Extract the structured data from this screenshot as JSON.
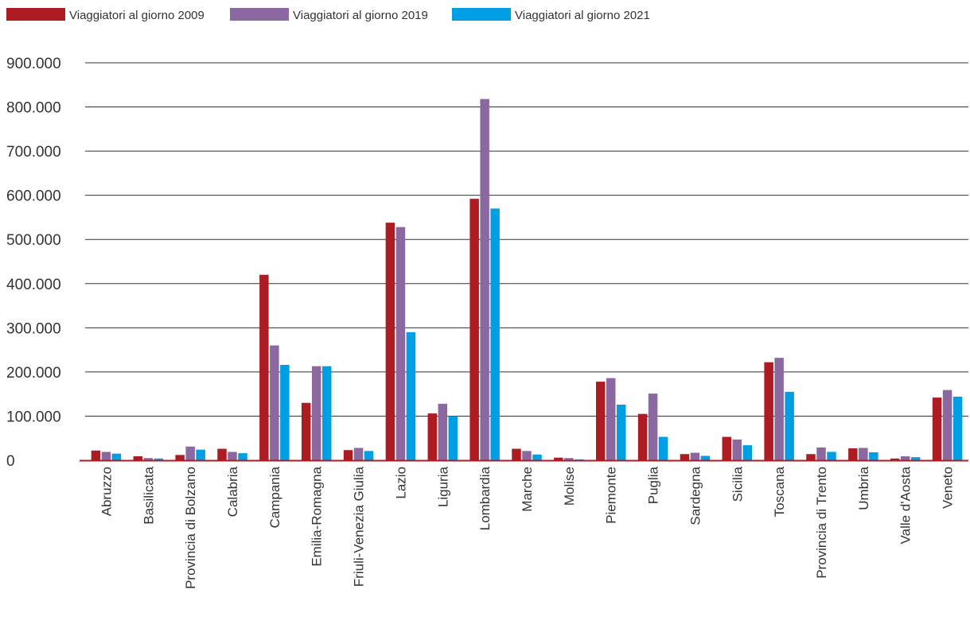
{
  "colors": {
    "series_2009": "#ad1c22",
    "series_2019": "#8c68a0",
    "series_2021": "#009fe3",
    "gridline": "#333333",
    "baseline": "#ad1c22"
  },
  "chart_data": {
    "type": "bar",
    "title": "",
    "xlabel": "",
    "ylabel": "",
    "ylim": [
      0,
      900000
    ],
    "grid": true,
    "legend_position": "top-left",
    "y_tick_values": [
      0,
      100000,
      200000,
      300000,
      400000,
      500000,
      600000,
      700000,
      800000,
      900000
    ],
    "y_tick_labels": [
      "0",
      "100.000",
      "200.000",
      "300.000",
      "400.000",
      "500.000",
      "600.000",
      "700.000",
      "800.000",
      "900.000"
    ],
    "categories": [
      "Abruzzo",
      "Basilicata",
      "Provincia di Bolzano",
      "Calabria",
      "Campania",
      "Emilia-Romagna",
      "Friuli-Venezia Giulia",
      "Lazio",
      "Liguria",
      "Lombardia",
      "Marche",
      "Molise",
      "Piemonte",
      "Puglia",
      "Sardegna",
      "Sicilia",
      "Toscana",
      "Provincia di Trento",
      "Umbria",
      "Valle d'Aosta",
      "Veneto"
    ],
    "series": [
      {
        "name": "Viaggiatori al giorno 2009",
        "values": [
          22000,
          9000,
          12000,
          26000,
          420000,
          130000,
          23000,
          538000,
          106000,
          592000,
          26000,
          6000,
          178000,
          105000,
          14000,
          53000,
          222000,
          14000,
          27000,
          4000,
          142000
        ]
      },
      {
        "name": "Viaggiatori al giorno 2019",
        "values": [
          19000,
          5000,
          31000,
          19000,
          260000,
          213000,
          28000,
          528000,
          128000,
          818000,
          21000,
          5000,
          186000,
          151000,
          17000,
          47000,
          232000,
          29000,
          28000,
          9000,
          159000
        ]
      },
      {
        "name": "Viaggiatori al giorno 2021",
        "values": [
          15000,
          4000,
          24000,
          16000,
          216000,
          213000,
          21000,
          290000,
          100000,
          570000,
          13000,
          2000,
          126000,
          53000,
          10000,
          34000,
          155000,
          19000,
          18000,
          7000,
          144000
        ]
      }
    ]
  }
}
